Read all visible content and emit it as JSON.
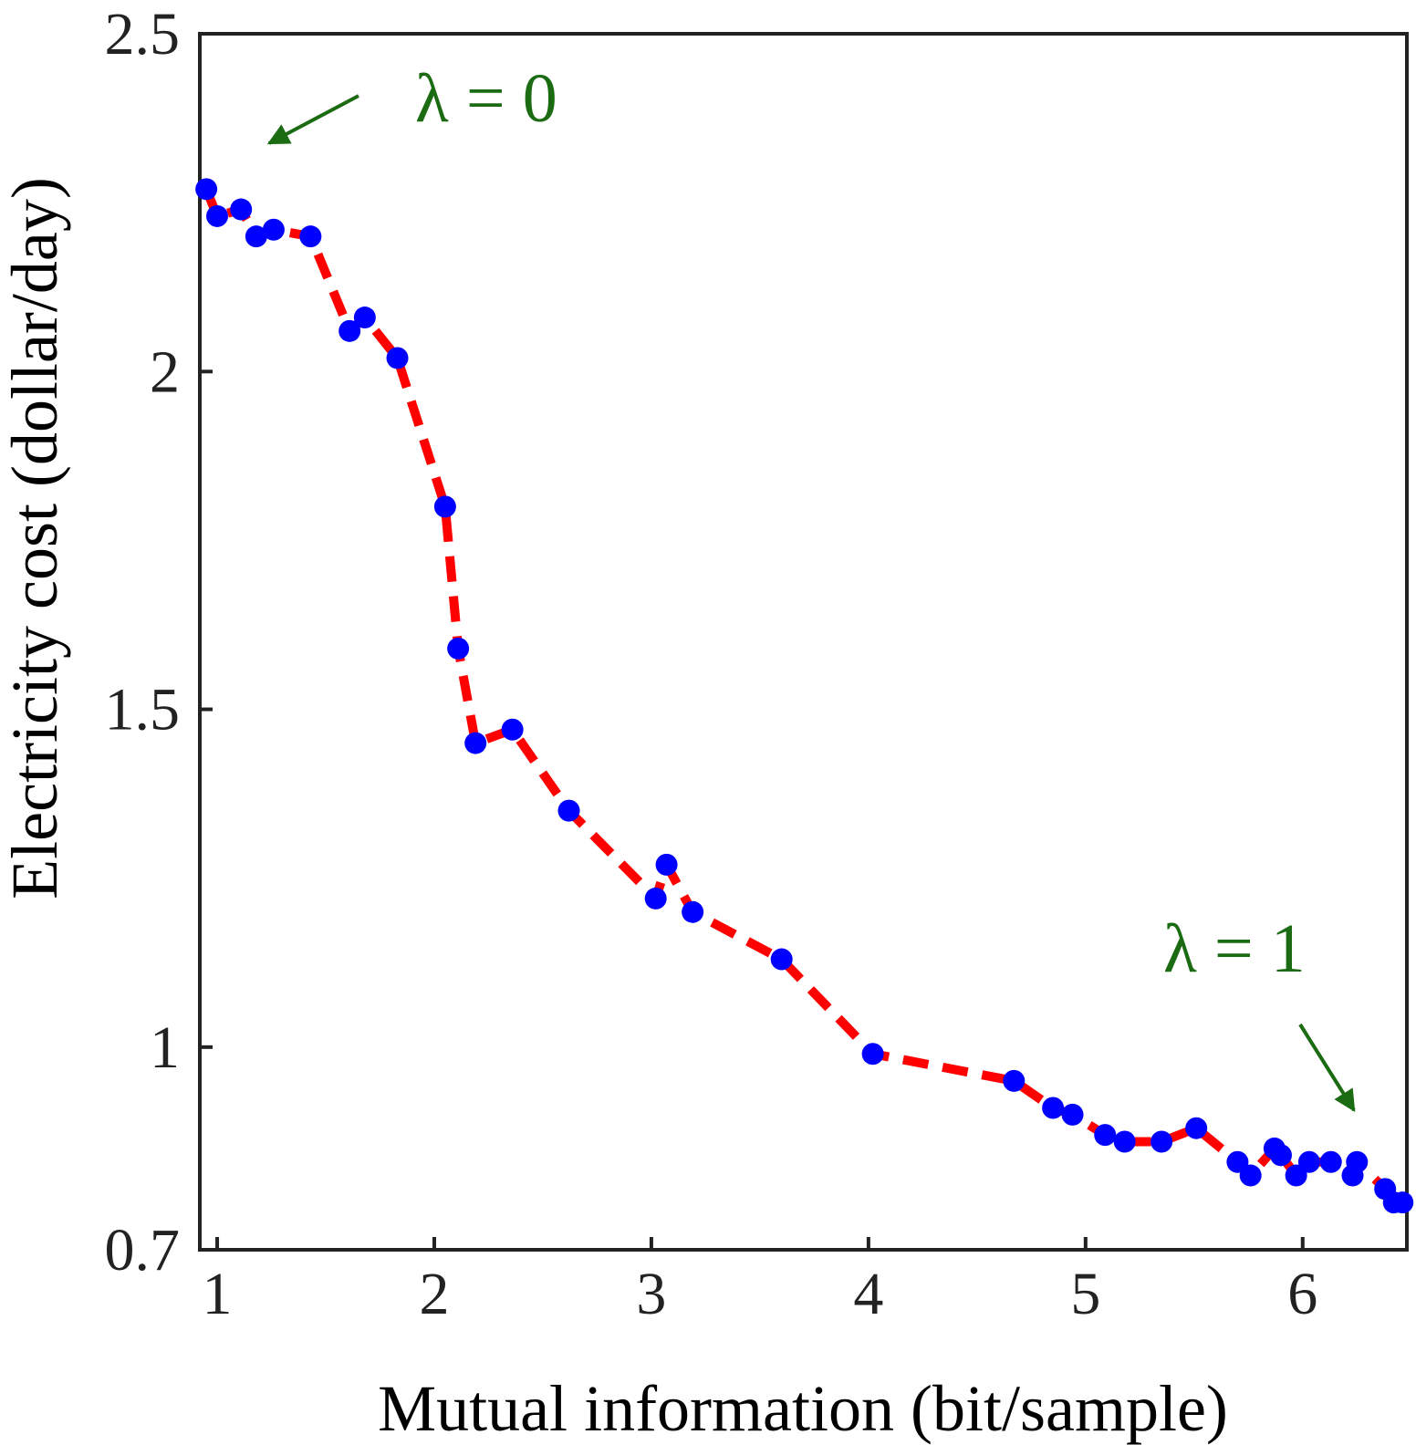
{
  "chart_data": {
    "type": "line",
    "xlabel": "Mutual information (bit/sample)",
    "ylabel": "Electricity cost (dollar/day)",
    "xlim": [
      0.92,
      6.48
    ],
    "ylim": [
      0.7,
      2.5
    ],
    "xticks": [
      1,
      2,
      3,
      4,
      5,
      6
    ],
    "yticks": [
      0.7,
      1,
      1.5,
      2,
      2.5
    ],
    "x_tick_labels": [
      "1",
      "2",
      "3",
      "4",
      "5",
      "6"
    ],
    "y_tick_labels": [
      "0.7",
      "1",
      "1.5",
      "2",
      "2.5"
    ],
    "grid": false,
    "line_style": "dashed",
    "colors": {
      "line": "#ff0000",
      "marker": "#0000ff",
      "annotation": "#1a6b12",
      "axes": "#222222"
    },
    "series": [
      {
        "x": [
          0.95,
          1.0,
          1.11,
          1.18,
          1.26,
          1.43,
          1.61,
          1.68,
          1.83,
          2.05,
          2.11,
          2.19,
          2.36,
          2.62,
          3.02,
          3.07,
          3.19,
          3.6,
          4.02,
          4.67,
          4.85,
          4.94,
          5.09,
          5.18,
          5.35,
          5.51,
          5.7,
          5.76,
          5.87,
          5.9,
          5.97,
          6.03,
          6.13,
          6.23,
          6.25,
          6.38,
          6.42,
          6.46
        ],
        "y": [
          2.27,
          2.23,
          2.24,
          2.2,
          2.21,
          2.2,
          2.06,
          2.08,
          2.02,
          1.8,
          1.59,
          1.45,
          1.47,
          1.35,
          1.22,
          1.27,
          1.2,
          1.13,
          0.99,
          0.95,
          0.91,
          0.9,
          0.87,
          0.86,
          0.86,
          0.88,
          0.83,
          0.81,
          0.85,
          0.84,
          0.81,
          0.83,
          0.83,
          0.81,
          0.83,
          0.79,
          0.77,
          0.77
        ]
      }
    ],
    "annotations": [
      {
        "text": "λ = 0",
        "target_x": 0.95,
        "target_y": 2.27
      },
      {
        "text": "λ = 1",
        "target_x": 6.46,
        "target_y": 0.77
      }
    ]
  }
}
